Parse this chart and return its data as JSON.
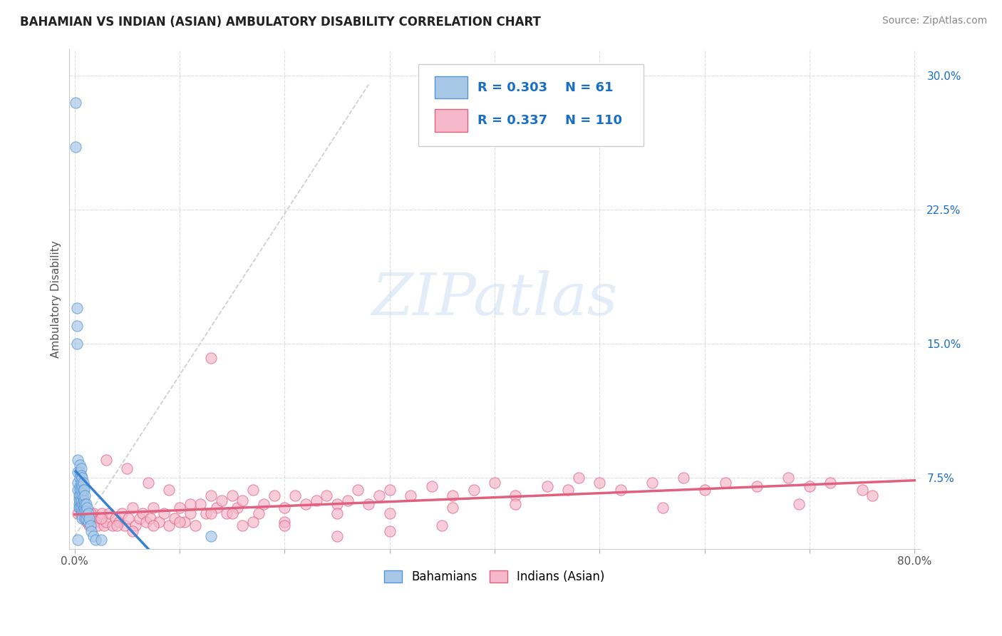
{
  "title": "BAHAMIAN VS INDIAN (ASIAN) AMBULATORY DISABILITY CORRELATION CHART",
  "source_text": "Source: ZipAtlas.com",
  "ylabel": "Ambulatory Disability",
  "xlim": [
    -0.005,
    0.805
  ],
  "ylim": [
    0.035,
    0.315
  ],
  "xticks": [
    0.0,
    0.1,
    0.2,
    0.3,
    0.4,
    0.5,
    0.6,
    0.7,
    0.8
  ],
  "xticklabels": [
    "0.0%",
    "",
    "",
    "",
    "",
    "",
    "",
    "",
    "80.0%"
  ],
  "yticks": [
    0.075,
    0.15,
    0.225,
    0.3
  ],
  "yticklabels": [
    "7.5%",
    "15.0%",
    "22.5%",
    "30.0%"
  ],
  "bahamian_color": "#a8c8e8",
  "indian_color": "#f5b8cc",
  "bahamian_edge_color": "#5595d5",
  "indian_edge_color": "#e06080",
  "bahamian_line_color": "#3a80d0",
  "indian_line_color": "#e06080",
  "ref_line_color": "#c0c0c0",
  "legend_R1": "0.303",
  "legend_N1": "61",
  "legend_R2": "0.337",
  "legend_N2": "110",
  "watermark": "ZIPatlas",
  "bg_color": "#ffffff",
  "grid_color": "#dddddd",
  "title_color": "#222222",
  "axis_label_color": "#555555",
  "tick_color": "#555555",
  "r_color": "#1a6fc4",
  "bahamian_x": [
    0.001,
    0.001,
    0.002,
    0.002,
    0.002,
    0.003,
    0.003,
    0.003,
    0.003,
    0.004,
    0.004,
    0.004,
    0.004,
    0.005,
    0.005,
    0.005,
    0.005,
    0.005,
    0.005,
    0.005,
    0.005,
    0.006,
    0.006,
    0.006,
    0.006,
    0.006,
    0.006,
    0.006,
    0.007,
    0.007,
    0.007,
    0.007,
    0.007,
    0.007,
    0.008,
    0.008,
    0.008,
    0.008,
    0.008,
    0.009,
    0.009,
    0.009,
    0.01,
    0.01,
    0.01,
    0.01,
    0.011,
    0.011,
    0.011,
    0.012,
    0.012,
    0.013,
    0.013,
    0.014,
    0.015,
    0.016,
    0.018,
    0.02,
    0.025,
    0.13,
    0.003
  ],
  "bahamian_y": [
    0.285,
    0.26,
    0.17,
    0.15,
    0.16,
    0.085,
    0.078,
    0.072,
    0.068,
    0.065,
    0.063,
    0.06,
    0.058,
    0.082,
    0.078,
    0.075,
    0.07,
    0.068,
    0.065,
    0.062,
    0.058,
    0.08,
    0.076,
    0.072,
    0.068,
    0.062,
    0.058,
    0.054,
    0.075,
    0.07,
    0.065,
    0.06,
    0.056,
    0.052,
    0.072,
    0.068,
    0.064,
    0.06,
    0.056,
    0.068,
    0.062,
    0.058,
    0.065,
    0.06,
    0.056,
    0.052,
    0.06,
    0.056,
    0.052,
    0.058,
    0.054,
    0.055,
    0.05,
    0.052,
    0.048,
    0.045,
    0.042,
    0.04,
    0.04,
    0.042,
    0.04
  ],
  "indian_x": [
    0.003,
    0.005,
    0.007,
    0.009,
    0.01,
    0.012,
    0.014,
    0.016,
    0.018,
    0.02,
    0.022,
    0.024,
    0.026,
    0.028,
    0.03,
    0.033,
    0.036,
    0.039,
    0.042,
    0.045,
    0.048,
    0.051,
    0.055,
    0.058,
    0.062,
    0.065,
    0.068,
    0.072,
    0.075,
    0.08,
    0.085,
    0.09,
    0.095,
    0.1,
    0.105,
    0.11,
    0.115,
    0.12,
    0.125,
    0.13,
    0.135,
    0.14,
    0.145,
    0.15,
    0.155,
    0.16,
    0.17,
    0.175,
    0.18,
    0.19,
    0.2,
    0.21,
    0.22,
    0.23,
    0.24,
    0.25,
    0.26,
    0.27,
    0.28,
    0.29,
    0.3,
    0.32,
    0.34,
    0.36,
    0.38,
    0.4,
    0.42,
    0.45,
    0.47,
    0.5,
    0.52,
    0.55,
    0.58,
    0.6,
    0.62,
    0.65,
    0.68,
    0.7,
    0.72,
    0.75,
    0.76,
    0.69,
    0.56,
    0.48,
    0.42,
    0.36,
    0.3,
    0.25,
    0.2,
    0.16,
    0.13,
    0.1,
    0.075,
    0.055,
    0.04,
    0.025,
    0.015,
    0.01,
    0.03,
    0.05,
    0.07,
    0.09,
    0.11,
    0.13,
    0.15,
    0.17,
    0.2,
    0.25,
    0.3,
    0.35
  ],
  "indian_y": [
    0.055,
    0.06,
    0.055,
    0.052,
    0.058,
    0.05,
    0.048,
    0.052,
    0.055,
    0.05,
    0.048,
    0.052,
    0.055,
    0.048,
    0.05,
    0.055,
    0.048,
    0.052,
    0.05,
    0.055,
    0.048,
    0.052,
    0.058,
    0.048,
    0.052,
    0.055,
    0.05,
    0.052,
    0.058,
    0.05,
    0.055,
    0.048,
    0.052,
    0.058,
    0.05,
    0.055,
    0.048,
    0.06,
    0.055,
    0.065,
    0.058,
    0.062,
    0.055,
    0.065,
    0.058,
    0.062,
    0.068,
    0.055,
    0.06,
    0.065,
    0.058,
    0.065,
    0.06,
    0.062,
    0.065,
    0.06,
    0.062,
    0.068,
    0.06,
    0.065,
    0.068,
    0.065,
    0.07,
    0.065,
    0.068,
    0.072,
    0.065,
    0.07,
    0.068,
    0.072,
    0.068,
    0.072,
    0.075,
    0.068,
    0.072,
    0.07,
    0.075,
    0.07,
    0.072,
    0.068,
    0.065,
    0.06,
    0.058,
    0.075,
    0.06,
    0.058,
    0.055,
    0.055,
    0.05,
    0.048,
    0.142,
    0.05,
    0.048,
    0.045,
    0.048,
    0.052,
    0.055,
    0.052,
    0.085,
    0.08,
    0.072,
    0.068,
    0.06,
    0.055,
    0.055,
    0.05,
    0.048,
    0.042,
    0.045,
    0.048
  ]
}
